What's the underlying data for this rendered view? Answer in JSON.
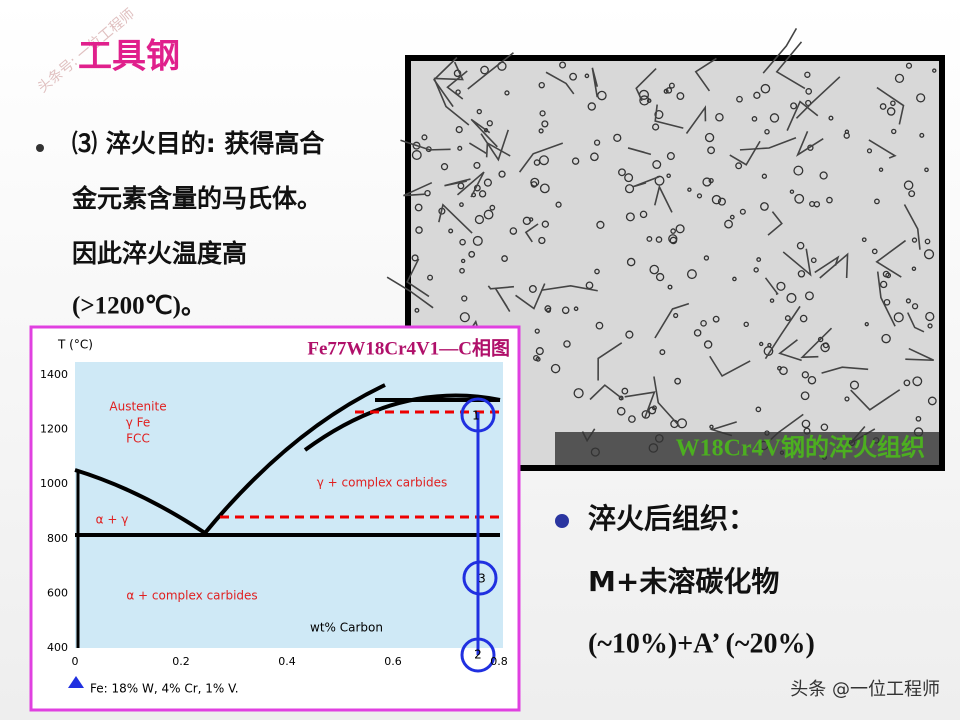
{
  "title": "工具钢",
  "bullet1": {
    "lines": [
      "⑶ 淬火目的: 获得高合",
      "金元素含量的马氏体。",
      "因此淬火温度高",
      "(>1200℃)。"
    ]
  },
  "micrograph": {
    "caption": "W18Cr4V钢的淬火组织"
  },
  "diagram": {
    "title": "Fe77W18Cr4V1—C相图",
    "y_label": "T (°C)",
    "x_label": "wt% Carbon",
    "yticks": [
      "1400",
      "1200",
      "1000",
      "800",
      "600",
      "400"
    ],
    "xticks": [
      "0",
      "0.2",
      "0.4",
      "0.6",
      "0.8"
    ],
    "regions": [
      "Austenite",
      "γ Fe",
      "FCC",
      "γ + complex carbides",
      "α + γ",
      "α + complex carbides"
    ],
    "markers": [
      "1",
      "3",
      "2"
    ],
    "note": "Fe: 18% W, 4% Cr, 1% V."
  },
  "bullet2": {
    "lines": [
      "淬火后组织：",
      "M+未溶碳化物",
      "(~10%)+A’ (~20%)"
    ]
  },
  "watermark": {
    "corner": "头条 @一位工程师",
    "diagonal": "头条号: 一位工程师"
  }
}
